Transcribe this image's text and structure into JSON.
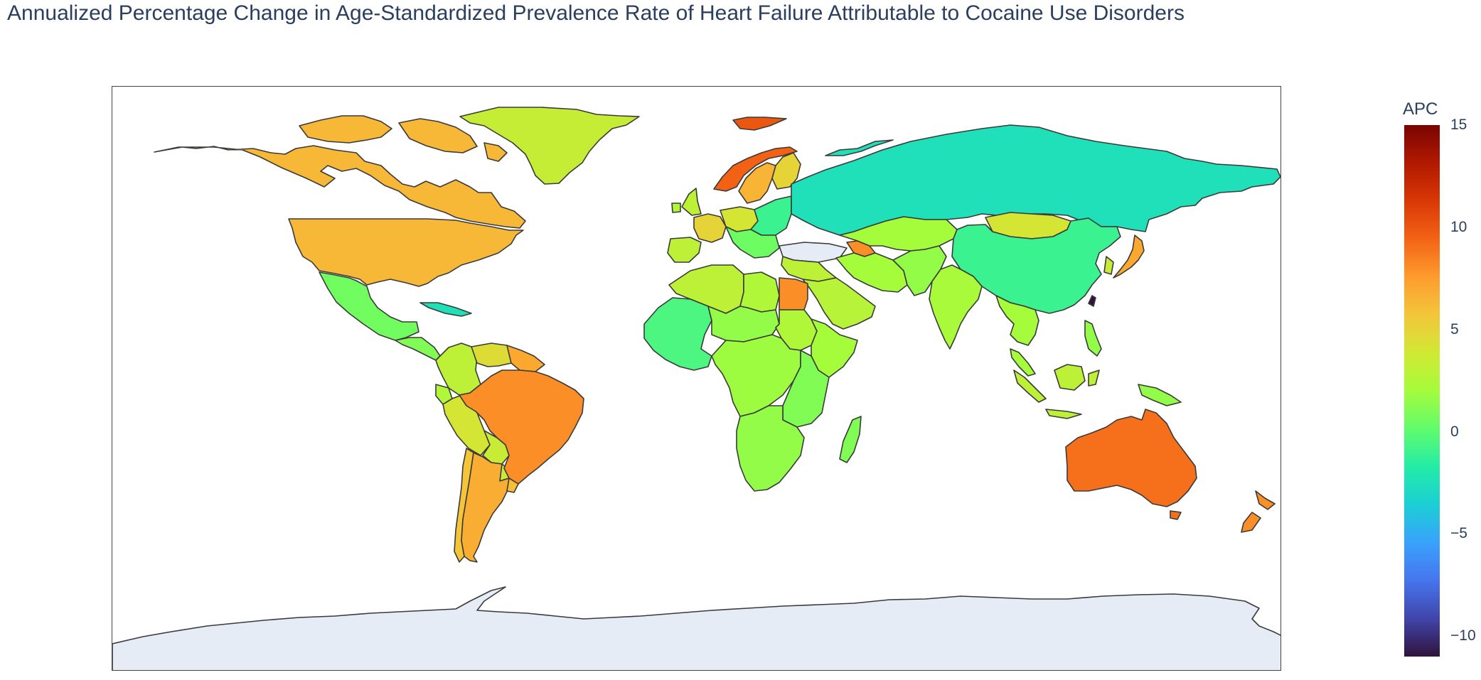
{
  "title": "Annualized Percentage Change in Age-Standardized Prevalence Rate of Heart Failure Attributable to Cocaine Use Disorders",
  "colorbar": {
    "title": "APC",
    "range": [
      -11,
      15
    ],
    "ticks": [
      {
        "value": 15,
        "label": "15"
      },
      {
        "value": 10,
        "label": "10"
      },
      {
        "value": 5,
        "label": "5"
      },
      {
        "value": 0,
        "label": "0"
      },
      {
        "value": -5,
        "label": "−5"
      },
      {
        "value": -10,
        "label": "−10"
      }
    ],
    "scale": [
      "#30123b",
      "#4145ab",
      "#4675ed",
      "#39a2fc",
      "#1bcfd4",
      "#24eca6",
      "#61fc6c",
      "#a4fc3b",
      "#d1e834",
      "#f3c63a",
      "#fe9b2d",
      "#f36315",
      "#d93806",
      "#b11901",
      "#7a0402"
    ],
    "no_data_color": "#e5ecf6"
  },
  "map_data": {
    "type": "choropleth",
    "projection": "equirectangular",
    "regions": [
      {
        "name": "Canada",
        "apc": 6.3
      },
      {
        "name": "United States",
        "apc": 6.3
      },
      {
        "name": "Greenland",
        "apc": 3.4
      },
      {
        "name": "Mexico",
        "apc": 0.6
      },
      {
        "name": "Cuba",
        "apc": -2.5
      },
      {
        "name": "Central America",
        "apc": 1.0
      },
      {
        "name": "Colombia",
        "apc": 3.0
      },
      {
        "name": "Venezuela",
        "apc": 4.5
      },
      {
        "name": "Guianas",
        "apc": 7.0
      },
      {
        "name": "Ecuador",
        "apc": 2.5
      },
      {
        "name": "Peru",
        "apc": 4.0
      },
      {
        "name": "Bolivia",
        "apc": 3.5
      },
      {
        "name": "Paraguay",
        "apc": 3.5
      },
      {
        "name": "Brazil",
        "apc": 8.0
      },
      {
        "name": "Chile",
        "apc": 5.8
      },
      {
        "name": "Argentina",
        "apc": 6.8
      },
      {
        "name": "Uruguay",
        "apc": 6.0
      },
      {
        "name": "Iceland",
        "apc": 10.0
      },
      {
        "name": "Norway",
        "apc": 9.5
      },
      {
        "name": "Sweden",
        "apc": 6.5
      },
      {
        "name": "Finland",
        "apc": 5.0
      },
      {
        "name": "United Kingdom",
        "apc": 3.0
      },
      {
        "name": "Ireland",
        "apc": 2.5
      },
      {
        "name": "France",
        "apc": 5.0
      },
      {
        "name": "Iberia",
        "apc": 3.0
      },
      {
        "name": "Central Europe",
        "apc": 4.0
      },
      {
        "name": "Eastern Europe",
        "apc": -1.0
      },
      {
        "name": "Balkans",
        "apc": 0.5
      },
      {
        "name": "Turkey",
        "apc": null
      },
      {
        "name": "Russia",
        "apc": -2.5
      },
      {
        "name": "Caucasus",
        "apc": 8.0
      },
      {
        "name": "Central Asia",
        "apc": 2.0
      },
      {
        "name": "Mongolia",
        "apc": 4.0
      },
      {
        "name": "China",
        "apc": -1.0
      },
      {
        "name": "Japan",
        "apc": 7.0
      },
      {
        "name": "Korea",
        "apc": 3.5
      },
      {
        "name": "Taiwan",
        "apc": -11.0
      },
      {
        "name": "Middle East",
        "apc": 3.0
      },
      {
        "name": "Saudi Arabia",
        "apc": 2.8
      },
      {
        "name": "Iran",
        "apc": 2.0
      },
      {
        "name": "Afghanistan & Pakistan",
        "apc": 1.5
      },
      {
        "name": "India",
        "apc": 2.2
      },
      {
        "name": "Southeast Asia",
        "apc": 2.0
      },
      {
        "name": "Indonesia",
        "apc": 3.0
      },
      {
        "name": "Philippines",
        "apc": 1.5
      },
      {
        "name": "Papua New Guinea",
        "apc": 1.5
      },
      {
        "name": "Australia",
        "apc": 9.0
      },
      {
        "name": "New Zealand",
        "apc": 8.0
      },
      {
        "name": "Morocco & Algeria",
        "apc": 3.0
      },
      {
        "name": "Libya",
        "apc": 2.5
      },
      {
        "name": "Egypt",
        "apc": 8.0
      },
      {
        "name": "West Africa",
        "apc": -0.5
      },
      {
        "name": "Sahel",
        "apc": 1.5
      },
      {
        "name": "Sudan",
        "apc": 2.5
      },
      {
        "name": "Horn of Africa",
        "apc": 2.0
      },
      {
        "name": "Central Africa",
        "apc": 1.8
      },
      {
        "name": "East Africa",
        "apc": 1.0
      },
      {
        "name": "Southern Africa",
        "apc": 1.5
      },
      {
        "name": "Madagascar",
        "apc": 1.0
      },
      {
        "name": "Antarctica",
        "apc": null
      }
    ]
  }
}
